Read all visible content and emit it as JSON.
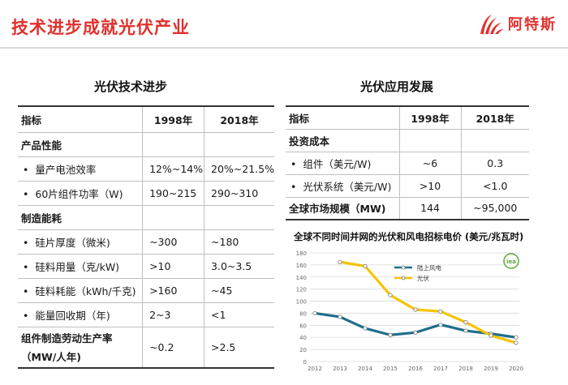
{
  "slide": {
    "title": "技术进步成就光伏产业"
  },
  "brand": {
    "name": "阿特斯",
    "logo_icon": "sun-rays-icon",
    "color": "#e0312d"
  },
  "left": {
    "title": "光伏技术进步",
    "headers": [
      "指标",
      "1998年",
      "2018年"
    ],
    "rows": [
      {
        "label": "产品性能",
        "group": true,
        "v1998": "",
        "v2018": ""
      },
      {
        "label": "量产电池效率",
        "bullet": true,
        "v1998": "12%~14%",
        "v2018": "20%~21.5%"
      },
      {
        "label": "60片组件功率（W)",
        "bullet": true,
        "v1998": "190~215",
        "v2018": "290~310"
      },
      {
        "label": "制造能耗",
        "group": true,
        "v1998": "",
        "v2018": ""
      },
      {
        "label": "硅片厚度（微米)",
        "bullet": true,
        "v1998": "~300",
        "v2018": "~180"
      },
      {
        "label": "硅料用量（克/kW)",
        "bullet": true,
        "v1998": ">10",
        "v2018": "3.0~3.5"
      },
      {
        "label": "硅料耗能（kWh/千克)",
        "bullet": true,
        "v1998": ">160",
        "v2018": "~45"
      },
      {
        "label": "能量回收期（年)",
        "bullet": true,
        "v1998": "2~3",
        "v2018": "<1"
      },
      {
        "label": "组件制造劳动生产率",
        "label2": "（MW/人年)",
        "group": true,
        "v1998": "~0.2",
        "v2018": ">2.5"
      }
    ]
  },
  "right": {
    "title": "光伏应用发展",
    "headers": [
      "指标",
      "1998年",
      "2018年"
    ],
    "rows": [
      {
        "label": "投资成本",
        "group": true,
        "v1998": "",
        "v2018": ""
      },
      {
        "label": "组件（美元/W)",
        "bullet": true,
        "v1998": "~6",
        "v2018": "0.3"
      },
      {
        "label": "光伏系统（美元/W)",
        "bullet": true,
        "v1998": ">10",
        "v2018": "<1.0"
      },
      {
        "label": "全球市场规模（MW)",
        "group": true,
        "v1998": "144",
        "v2018": "~95,000"
      }
    ]
  },
  "chart_data": {
    "type": "line",
    "title": "全球不同时间并网的光伏和风电招标电价 (美元/兆瓦时)",
    "x": [
      "2012",
      "2013",
      "2014",
      "2015",
      "2016",
      "2017",
      "2018",
      "2019",
      "2020"
    ],
    "ylim": [
      0,
      180
    ],
    "yticks": [
      "0",
      "20",
      "40",
      "60",
      "80",
      "100",
      "120",
      "140",
      "160",
      "180"
    ],
    "grid": true,
    "legend_position": "top-right",
    "badge_text": "iea",
    "series": [
      {
        "name": "陆上风电",
        "color": "#1f6e8c",
        "values": [
          80,
          74,
          55,
          44,
          48,
          61,
          51,
          46,
          40
        ]
      },
      {
        "name": "光伏",
        "color": "#f5c300",
        "values": [
          null,
          165,
          158,
          110,
          86,
          83,
          65,
          43,
          31
        ]
      }
    ]
  }
}
